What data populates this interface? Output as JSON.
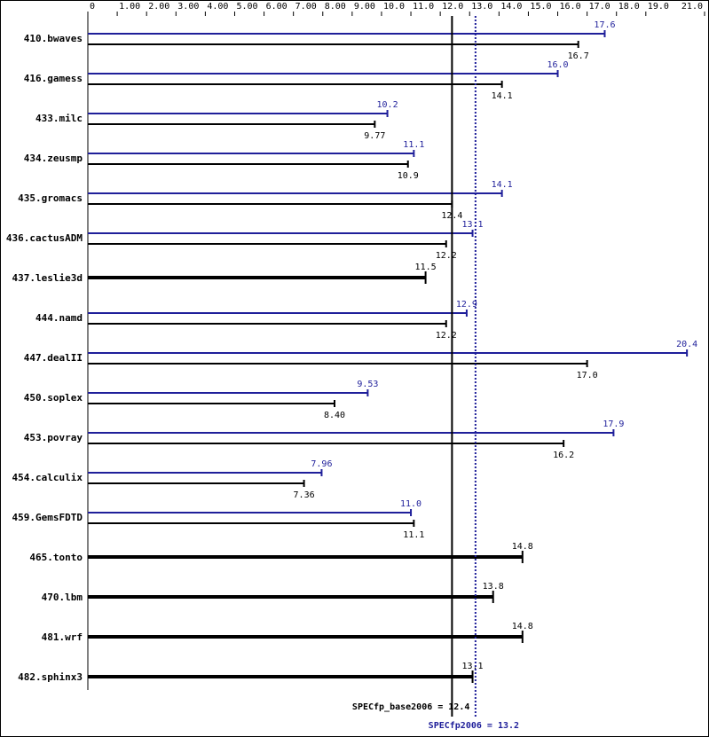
{
  "chart_data": {
    "type": "spec-bar",
    "categories": [
      "410.bwaves",
      "416.gamess",
      "433.milc",
      "434.zeusmp",
      "435.gromacs",
      "436.cactusADM",
      "437.leslie3d",
      "444.namd",
      "447.dealII",
      "450.soplex",
      "453.povray",
      "454.calculix",
      "459.GemsFDTD",
      "465.tonto",
      "470.lbm",
      "481.wrf",
      "482.sphinx3"
    ],
    "series": [
      {
        "name": "peak",
        "color": "#1f1f9a",
        "values": [
          17.6,
          16.0,
          10.2,
          11.1,
          14.1,
          13.1,
          null,
          12.9,
          20.4,
          9.53,
          17.9,
          7.96,
          11.0,
          null,
          null,
          null,
          null
        ],
        "value_labels": [
          "17.6",
          "16.0",
          "10.2",
          "11.1",
          "14.1",
          "13.1",
          null,
          "12.9",
          "20.4",
          "9.53",
          "17.9",
          "7.96",
          "11.0",
          null,
          null,
          null,
          null
        ]
      },
      {
        "name": "base",
        "color": "#000000",
        "values": [
          16.7,
          14.1,
          9.77,
          10.9,
          12.4,
          12.2,
          11.5,
          12.2,
          17.0,
          8.4,
          16.2,
          7.36,
          11.1,
          14.8,
          13.8,
          14.8,
          13.1
        ],
        "value_labels": [
          "16.7",
          "14.1",
          "9.77",
          "10.9",
          "12.4",
          "12.2",
          "11.5",
          "12.2",
          "17.0",
          "8.40",
          "16.2",
          "7.36",
          "11.1",
          "14.8",
          "13.8",
          "14.8",
          "13.1"
        ]
      }
    ],
    "xlim": [
      0,
      21
    ],
    "xticks": [
      0,
      {
        "value": 1,
        "label": "1.00"
      },
      {
        "value": 2,
        "label": "2.00"
      },
      {
        "value": 3,
        "label": "3.00"
      },
      {
        "value": 4,
        "label": "4.00"
      },
      {
        "value": 5,
        "label": "5.00"
      },
      {
        "value": 6,
        "label": "6.00"
      },
      {
        "value": 7,
        "label": "7.00"
      },
      {
        "value": 8,
        "label": "8.00"
      },
      {
        "value": 9,
        "label": "9.00"
      },
      {
        "value": 10,
        "label": "10.0"
      },
      {
        "value": 11,
        "label": "11.0"
      },
      {
        "value": 12,
        "label": "12.0"
      },
      {
        "value": 13,
        "label": "13.0"
      },
      {
        "value": 14,
        "label": "14.0"
      },
      {
        "value": 15,
        "label": "15.0"
      },
      {
        "value": 16,
        "label": "16.0"
      },
      {
        "value": 17,
        "label": "17.0"
      },
      {
        "value": 18,
        "label": "18.0"
      },
      {
        "value": 19,
        "label": "19.0"
      },
      {
        "value": 21,
        "label": "21.0"
      }
    ],
    "base_mean": {
      "value": 12.4,
      "label": "SPECfp_base2006 = 12.4"
    },
    "peak_mean": {
      "value": 13.2,
      "label": "SPECfp2006 = 13.2"
    }
  }
}
